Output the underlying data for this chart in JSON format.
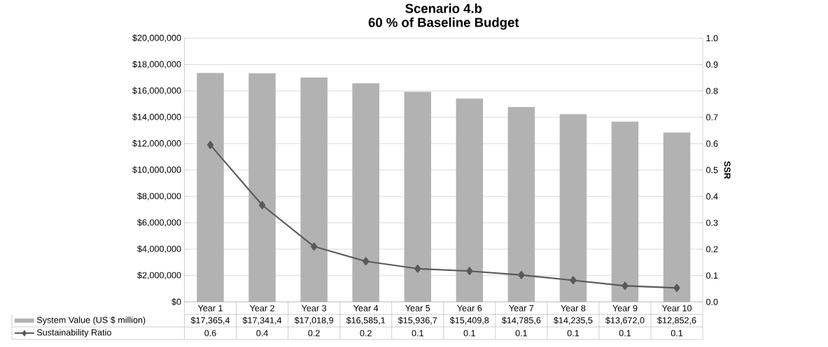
{
  "chart_data": {
    "type": "bar",
    "title": "Scenario 4.b",
    "subtitle": "60 % of Baseline Budget",
    "y2label": "SSR",
    "categories": [
      "Year 1",
      "Year 2",
      "Year 3",
      "Year 4",
      "Year 5",
      "Year 6",
      "Year 7",
      "Year 8",
      "Year 9",
      "Year 10"
    ],
    "series": [
      {
        "name": "System Value (US $ million)",
        "color": "#b2b2b2",
        "values": [
          17365400,
          17341400,
          17018900,
          16585100,
          15936700,
          15409800,
          14785600,
          14235500,
          13672000,
          12852600
        ],
        "value_labels": [
          "$17,365,4",
          "$17,341,4",
          "$17,018,9",
          "$16,585,1",
          "$15,936,7",
          "$15,409,8",
          "$14,785,6",
          "$14,235,5",
          "$13,672,0",
          "$12,852,6"
        ]
      },
      {
        "name": "Sustainability Ratio",
        "type": "line",
        "axis": "y2",
        "color": "#595959",
        "values": [
          0.595,
          0.367,
          0.21,
          0.154,
          0.126,
          0.117,
          0.102,
          0.082,
          0.061,
          0.053
        ],
        "value_labels": [
          "0.6",
          "0.4",
          "0.2",
          "0.2",
          "0.1",
          "0.1",
          "0.1",
          "0.1",
          "0.1",
          "0.1"
        ]
      }
    ],
    "ylim": [
      0,
      20000000
    ],
    "yticks": [
      {
        "value": 0,
        "label": "$0"
      },
      {
        "value": 2000000,
        "label": "$2,000,000"
      },
      {
        "value": 4000000,
        "label": "$4,000,000"
      },
      {
        "value": 6000000,
        "label": "$6,000,000"
      },
      {
        "value": 8000000,
        "label": "$8,000,000"
      },
      {
        "value": 10000000,
        "label": "$10,000,000"
      },
      {
        "value": 12000000,
        "label": "$12,000,000"
      },
      {
        "value": 14000000,
        "label": "$14,000,000"
      },
      {
        "value": 16000000,
        "label": "$16,000,000"
      },
      {
        "value": 18000000,
        "label": "$18,000,000"
      },
      {
        "value": 20000000,
        "label": "$20,000,000"
      }
    ],
    "y2lim": [
      0,
      1
    ],
    "y2ticks": [
      {
        "value": 0,
        "label": "0.0"
      },
      {
        "value": 0.1,
        "label": "0.1"
      },
      {
        "value": 0.2,
        "label": "0.2"
      },
      {
        "value": 0.3,
        "label": "0.3"
      },
      {
        "value": 0.4,
        "label": "0.4"
      },
      {
        "value": 0.5,
        "label": "0.5"
      },
      {
        "value": 0.6,
        "label": "0.6"
      },
      {
        "value": 0.7,
        "label": "0.7"
      },
      {
        "value": 0.8,
        "label": "0.8"
      },
      {
        "value": 0.9,
        "label": "0.9"
      },
      {
        "value": 1,
        "label": "1.0"
      }
    ],
    "grid": "y",
    "legend": "bottom",
    "marker": "diamond",
    "line_style": "solid"
  }
}
